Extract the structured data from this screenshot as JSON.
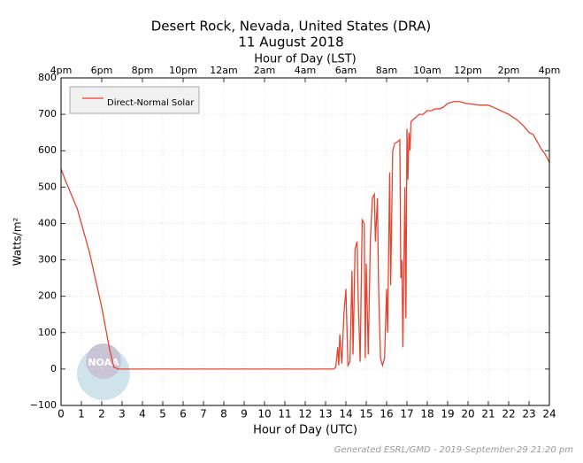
{
  "chart_data": {
    "type": "line",
    "title": "Desert Rock, Nevada, United States (DRA)",
    "subtitle": "11 August 2018",
    "x_label": "Hour of Day (UTC)",
    "x2_label": "Hour of Day (LST)",
    "y_label": "Watts/m²",
    "annotation": "Generated ESRL/GMD - 2019-September-29 21:20 pm",
    "logo_text": "NOAA",
    "legend": "upper left",
    "grid": true,
    "xlim": [
      0,
      24
    ],
    "xticks": [
      0,
      1,
      2,
      3,
      4,
      5,
      6,
      7,
      8,
      9,
      10,
      11,
      12,
      13,
      14,
      15,
      16,
      17,
      18,
      19,
      20,
      21,
      22,
      23,
      24
    ],
    "x2ticks": [
      {
        "value": 0,
        "label": "4pm"
      },
      {
        "value": 2,
        "label": "6pm"
      },
      {
        "value": 4,
        "label": "8pm"
      },
      {
        "value": 6,
        "label": "10pm"
      },
      {
        "value": 8,
        "label": "12am"
      },
      {
        "value": 10,
        "label": "2am"
      },
      {
        "value": 12,
        "label": "4am"
      },
      {
        "value": 14,
        "label": "6am"
      },
      {
        "value": 16,
        "label": "8am"
      },
      {
        "value": 18,
        "label": "10am"
      },
      {
        "value": 20,
        "label": "12pm"
      },
      {
        "value": 22,
        "label": "2pm"
      },
      {
        "value": 24,
        "label": "4pm"
      }
    ],
    "ylim": [
      -100,
      800
    ],
    "yticks": [
      {
        "value": -100,
        "label": "−100"
      },
      0,
      100,
      200,
      300,
      400,
      500,
      600,
      700,
      800
    ],
    "x": [
      0,
      0.2,
      0.5,
      0.8,
      1.0,
      1.2,
      1.4,
      1.6,
      1.8,
      2.0,
      2.2,
      2.4,
      2.6,
      2.8,
      13.4,
      13.5,
      13.6,
      13.65,
      13.7,
      13.8,
      13.9,
      14.0,
      14.1,
      14.2,
      14.3,
      14.35,
      14.45,
      14.55,
      14.6,
      14.7,
      14.8,
      14.9,
      14.95,
      15.0,
      15.1,
      15.2,
      15.3,
      15.4,
      15.45,
      15.55,
      15.6,
      15.7,
      15.8,
      15.9,
      16.0,
      16.05,
      16.15,
      16.2,
      16.3,
      16.4,
      16.55,
      16.65,
      16.7,
      16.75,
      16.8,
      16.9,
      16.95,
      17.0,
      17.05,
      17.1,
      17.15,
      17.2,
      17.4,
      17.6,
      17.8,
      18.0,
      18.2,
      18.4,
      18.6,
      18.8,
      19.0,
      19.3,
      19.6,
      19.9,
      20.2,
      20.6,
      21.0,
      21.3,
      21.6,
      22.0,
      22.4,
      22.7,
      23.0,
      23.2,
      23.4,
      23.6,
      23.8,
      24.0
    ],
    "series": [
      {
        "name": "Direct-Normal Solar",
        "color": "#e8432e",
        "values": [
          550,
          520,
          480,
          440,
          400,
          360,
          320,
          270,
          220,
          170,
          110,
          50,
          5,
          0,
          0,
          5,
          60,
          10,
          95,
          15,
          150,
          220,
          10,
          20,
          270,
          40,
          330,
          350,
          200,
          20,
          410,
          400,
          30,
          290,
          40,
          350,
          470,
          480,
          350,
          470,
          240,
          30,
          10,
          30,
          220,
          100,
          540,
          230,
          600,
          620,
          625,
          630,
          250,
          300,
          60,
          500,
          140,
          660,
          520,
          650,
          600,
          680,
          690,
          700,
          700,
          710,
          710,
          715,
          715,
          720,
          730,
          735,
          735,
          730,
          728,
          725,
          725,
          718,
          710,
          700,
          685,
          670,
          650,
          645,
          625,
          605,
          590,
          568
        ]
      }
    ]
  }
}
